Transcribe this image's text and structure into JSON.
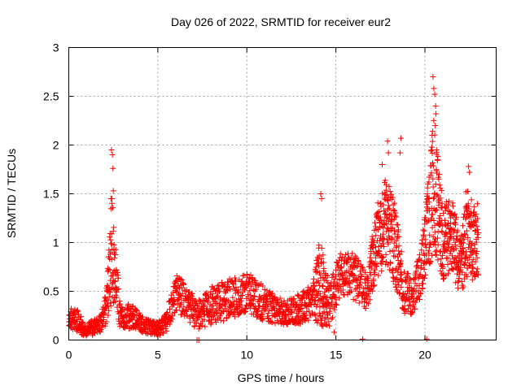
{
  "chart_data": {
    "type": "scatter",
    "title": "Day 026 of 2022, SRMTID for receiver eur2",
    "xlabel": "GPS time / hours",
    "ylabel": "SRMTID / TECUs",
    "xlim": [
      0,
      24
    ],
    "ylim": [
      0,
      3
    ],
    "xticks": [
      0,
      5,
      10,
      15,
      20
    ],
    "xtick_labels": [
      "0",
      "5",
      "10",
      "15",
      "20"
    ],
    "yticks": [
      0,
      0.5,
      1,
      1.5,
      2,
      2.5,
      3
    ],
    "ytick_labels": [
      "0",
      "0.5",
      "1",
      "1.5",
      "2",
      "2.5",
      "3"
    ],
    "grid": true,
    "marker": "+",
    "color": "#ff0000",
    "series": [
      {
        "name": "SRMTID",
        "profile": [
          {
            "x": 0.0,
            "y": 0.22,
            "spread": 0.09
          },
          {
            "x": 0.5,
            "y": 0.2,
            "spread": 0.09
          },
          {
            "x": 0.9,
            "y": 0.1,
            "spread": 0.05
          },
          {
            "x": 1.3,
            "y": 0.12,
            "spread": 0.06
          },
          {
            "x": 1.8,
            "y": 0.18,
            "spread": 0.08
          },
          {
            "x": 2.1,
            "y": 0.35,
            "spread": 0.15
          },
          {
            "x": 2.4,
            "y": 0.95,
            "spread": 0.45
          },
          {
            "x": 2.6,
            "y": 0.7,
            "spread": 0.25
          },
          {
            "x": 2.9,
            "y": 0.22,
            "spread": 0.1
          },
          {
            "x": 3.5,
            "y": 0.25,
            "spread": 0.1
          },
          {
            "x": 4.2,
            "y": 0.15,
            "spread": 0.06
          },
          {
            "x": 5.0,
            "y": 0.12,
            "spread": 0.06
          },
          {
            "x": 5.5,
            "y": 0.18,
            "spread": 0.08
          },
          {
            "x": 6.0,
            "y": 0.5,
            "spread": 0.15
          },
          {
            "x": 6.6,
            "y": 0.38,
            "spread": 0.14
          },
          {
            "x": 7.2,
            "y": 0.25,
            "spread": 0.12
          },
          {
            "x": 8.0,
            "y": 0.35,
            "spread": 0.15
          },
          {
            "x": 9.0,
            "y": 0.42,
            "spread": 0.16
          },
          {
            "x": 10.0,
            "y": 0.5,
            "spread": 0.16
          },
          {
            "x": 11.0,
            "y": 0.36,
            "spread": 0.14
          },
          {
            "x": 12.0,
            "y": 0.28,
            "spread": 0.1
          },
          {
            "x": 13.0,
            "y": 0.32,
            "spread": 0.12
          },
          {
            "x": 13.7,
            "y": 0.4,
            "spread": 0.14
          },
          {
            "x": 14.1,
            "y": 0.6,
            "spread": 0.35
          },
          {
            "x": 14.6,
            "y": 0.35,
            "spread": 0.18
          },
          {
            "x": 15.3,
            "y": 0.7,
            "spread": 0.18
          },
          {
            "x": 16.0,
            "y": 0.65,
            "spread": 0.18
          },
          {
            "x": 16.7,
            "y": 0.5,
            "spread": 0.15
          },
          {
            "x": 17.3,
            "y": 1.0,
            "spread": 0.3
          },
          {
            "x": 17.8,
            "y": 1.2,
            "spread": 0.35
          },
          {
            "x": 18.3,
            "y": 1.0,
            "spread": 0.35
          },
          {
            "x": 18.8,
            "y": 0.5,
            "spread": 0.18
          },
          {
            "x": 19.3,
            "y": 0.45,
            "spread": 0.15
          },
          {
            "x": 19.8,
            "y": 0.7,
            "spread": 0.2
          },
          {
            "x": 20.2,
            "y": 1.2,
            "spread": 0.35
          },
          {
            "x": 20.5,
            "y": 1.6,
            "spread": 0.55
          },
          {
            "x": 21.0,
            "y": 1.0,
            "spread": 0.3
          },
          {
            "x": 21.5,
            "y": 1.1,
            "spread": 0.3
          },
          {
            "x": 22.0,
            "y": 0.75,
            "spread": 0.25
          },
          {
            "x": 22.4,
            "y": 1.1,
            "spread": 0.35
          },
          {
            "x": 22.8,
            "y": 0.95,
            "spread": 0.3
          },
          {
            "x": 23.0,
            "y": 1.05,
            "spread": 0.3
          }
        ],
        "peaks": [
          {
            "x": 2.4,
            "y": 1.95
          },
          {
            "x": 2.45,
            "y": 1.9
          },
          {
            "x": 2.48,
            "y": 1.76
          },
          {
            "x": 2.5,
            "y": 1.53
          },
          {
            "x": 2.42,
            "y": 1.45
          },
          {
            "x": 14.15,
            "y": 1.5
          },
          {
            "x": 14.2,
            "y": 1.45
          },
          {
            "x": 17.9,
            "y": 2.04
          },
          {
            "x": 17.95,
            "y": 1.92
          },
          {
            "x": 18.65,
            "y": 2.07
          },
          {
            "x": 18.6,
            "y": 1.92
          },
          {
            "x": 20.45,
            "y": 2.7
          },
          {
            "x": 20.5,
            "y": 2.58
          },
          {
            "x": 20.55,
            "y": 2.52
          },
          {
            "x": 20.6,
            "y": 2.4
          },
          {
            "x": 20.62,
            "y": 2.32
          },
          {
            "x": 20.58,
            "y": 2.2
          },
          {
            "x": 20.4,
            "y": 2.1
          },
          {
            "x": 20.65,
            "y": 1.95
          },
          {
            "x": 20.7,
            "y": 1.85
          },
          {
            "x": 22.45,
            "y": 1.78
          },
          {
            "x": 22.5,
            "y": 1.72
          },
          {
            "x": 22.3,
            "y": 1.52
          },
          {
            "x": 17.6,
            "y": 1.8
          },
          {
            "x": 16.5,
            "y": 0.01
          },
          {
            "x": 7.2,
            "y": 0.0
          },
          {
            "x": 7.3,
            "y": 0.0
          },
          {
            "x": 14.9,
            "y": 0.08
          },
          {
            "x": 20.1,
            "y": 0.01
          }
        ],
        "sample_step_hours": 0.022
      }
    ]
  }
}
